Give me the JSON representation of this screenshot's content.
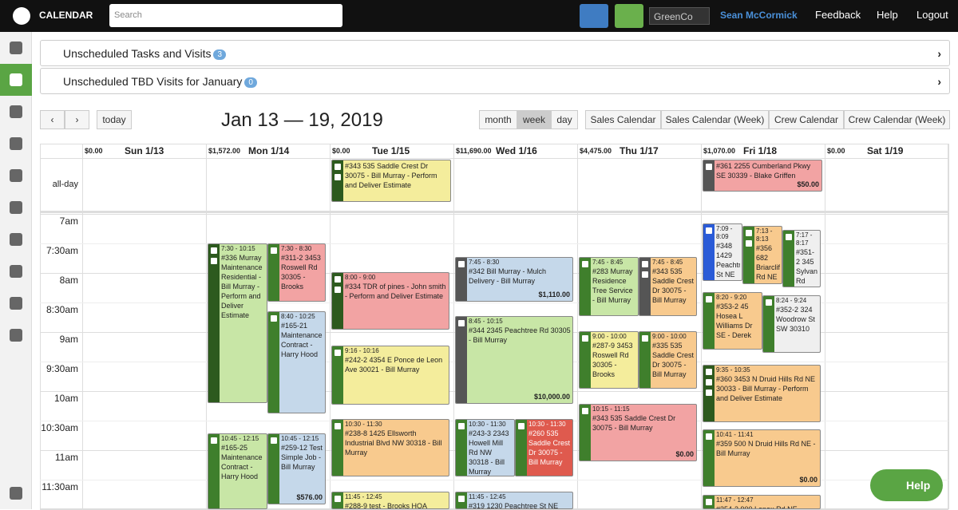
{
  "header": {
    "app_title": "CALENDAR",
    "search_placeholder": "Search",
    "company": "GreenCo",
    "user": "Sean McCormick",
    "links": [
      "Feedback",
      "Help",
      "Logout"
    ]
  },
  "panels": [
    {
      "label": "Unscheduled Tasks and Visits",
      "count": 3
    },
    {
      "label": "Unscheduled TBD Visits for January",
      "count": 0
    }
  ],
  "toolbar": {
    "today": "today",
    "title": "Jan 13 — 19, 2019",
    "views": [
      "month",
      "week",
      "day"
    ],
    "calendars": [
      "Sales Calendar",
      "Sales Calendar (Week)",
      "Crew Calendar",
      "Crew Calendar (Week)"
    ]
  },
  "grid": {
    "all_day_label": "all-day",
    "times": [
      "7am",
      "7:30am",
      "8am",
      "8:30am",
      "9am",
      "9:30am",
      "10am",
      "10:30am",
      "11am",
      "11:30am"
    ],
    "days": [
      {
        "total": "$0.00",
        "label": "Sun 1/13"
      },
      {
        "total": "$1,572.00",
        "label": "Mon 1/14"
      },
      {
        "total": "$0.00",
        "label": "Tue 1/15"
      },
      {
        "total": "$11,690.00",
        "label": "Wed 1/16"
      },
      {
        "total": "$4,475.00",
        "label": "Thu 1/17"
      },
      {
        "total": "$1,070.00",
        "label": "Fri 1/18"
      },
      {
        "total": "$0.00",
        "label": "Sat 1/19"
      }
    ],
    "all_day_events": [
      {
        "title": "#343 535 Saddle Crest Dr 30075 - Bill Murray - Perform and Deliver Estimate"
      },
      {
        "title": "#361 2255 Cumberland Pkwy SE 30339 - Blake Griffen",
        "amount": "$50.00"
      }
    ],
    "events": [
      {
        "time": "7:30 - 10:15",
        "title": "#336 Murray Maintenance Residential - Bill Murray - Perform and Deliver Estimate"
      },
      {
        "time": "7:30 - 8:30",
        "title": "#311-2 3453 Roswell Rd 30305 - Brooks"
      },
      {
        "time": "8:40 - 10:25",
        "title": "#165-21 Maintenance Contract - Harry Hood"
      },
      {
        "time": "10:45 - 12:15",
        "title": "#165-25 Maintenance Contract - Harry Hood"
      },
      {
        "time": "10:45 - 12:15",
        "title": "#259-12 Test Simple Job - Bill Murray",
        "amount": "$576.00"
      },
      {
        "time": "8:00 - 9:00",
        "title": "#334 TDR of pines - John smith - Perform and Deliver Estimate"
      },
      {
        "time": "9:16 - 10:16",
        "title": "#242-2 4354 E Ponce de Leon Ave 30021 - Bill Murray"
      },
      {
        "time": "10:30 - 11:30",
        "title": "#238-8 1425 Ellsworth Industrial Blvd NW 30318 - Bill Murray"
      },
      {
        "time": "11:45 - 12:45",
        "title": "#288-9 test - Brooks HOA"
      },
      {
        "time": "7:45 - 8:30",
        "title": "#342 Bill Murray - Mulch Delivery - Bill Murray",
        "amount": "$1,110.00"
      },
      {
        "time": "8:45 - 10:15",
        "title": "#344 2345 Peachtree Rd 30305 - Bill Murray",
        "amount": "$10,000.00"
      },
      {
        "time": "10:30 - 11:30",
        "title": "#243-3 2343 Howell Mill Rd NW 30318 - Bill Murray"
      },
      {
        "time": "10:30 - 11:30",
        "title": "#260 535 Saddle Crest Dr 30075 - Bill Murray"
      },
      {
        "time": "11:45 - 12:45",
        "title": "#319 1230 Peachtree St NE"
      },
      {
        "time": "7:45 - 8:45",
        "title": "#283 Murray Residence Tree Service - Bill Murray"
      },
      {
        "time": "7:45 - 8:45",
        "title": "#343 535 Saddle Crest Dr 30075 - Bill Murray"
      },
      {
        "time": "9:00 - 10:00",
        "title": "#287-9 3453 Roswell Rd 30305 - Brooks"
      },
      {
        "time": "9:00 - 10:00",
        "title": "#335 535 Saddle Crest Dr 30075 - Bill Murray"
      },
      {
        "time": "10:15 - 11:15",
        "title": "#343 535 Saddle Crest Dr 30075 - Bill Murray",
        "amount": "$0.00"
      },
      {
        "time": "7:09 - 8:09",
        "title": "#348 1429 Peachtree St NE"
      },
      {
        "time": "7:13 - 8:13",
        "title": "#356 682 Briarcliff Rd NE"
      },
      {
        "time": "7:17 - 8:17",
        "title": "#351-2 345 Sylvan Rd"
      },
      {
        "time": "8:20 - 9:20",
        "title": "#353-2 45 Hosea L Williams Dr SE - Derek"
      },
      {
        "time": "8:24 - 9:24",
        "title": "#352-2 324 Woodrow St SW 30310"
      },
      {
        "time": "9:35 - 10:35",
        "title": "#360 3453 N Druid Hills Rd NE 30033 - Bill Murray - Perform and Deliver Estimate"
      },
      {
        "time": "10:41 - 11:41",
        "title": "#359 500 N Druid Hills Rd NE - Bill Murray",
        "amount": "$0.00"
      },
      {
        "time": "11:47 - 12:47",
        "title": "#354-2 900 Lenox Rd NE"
      }
    ]
  },
  "help": "Help"
}
